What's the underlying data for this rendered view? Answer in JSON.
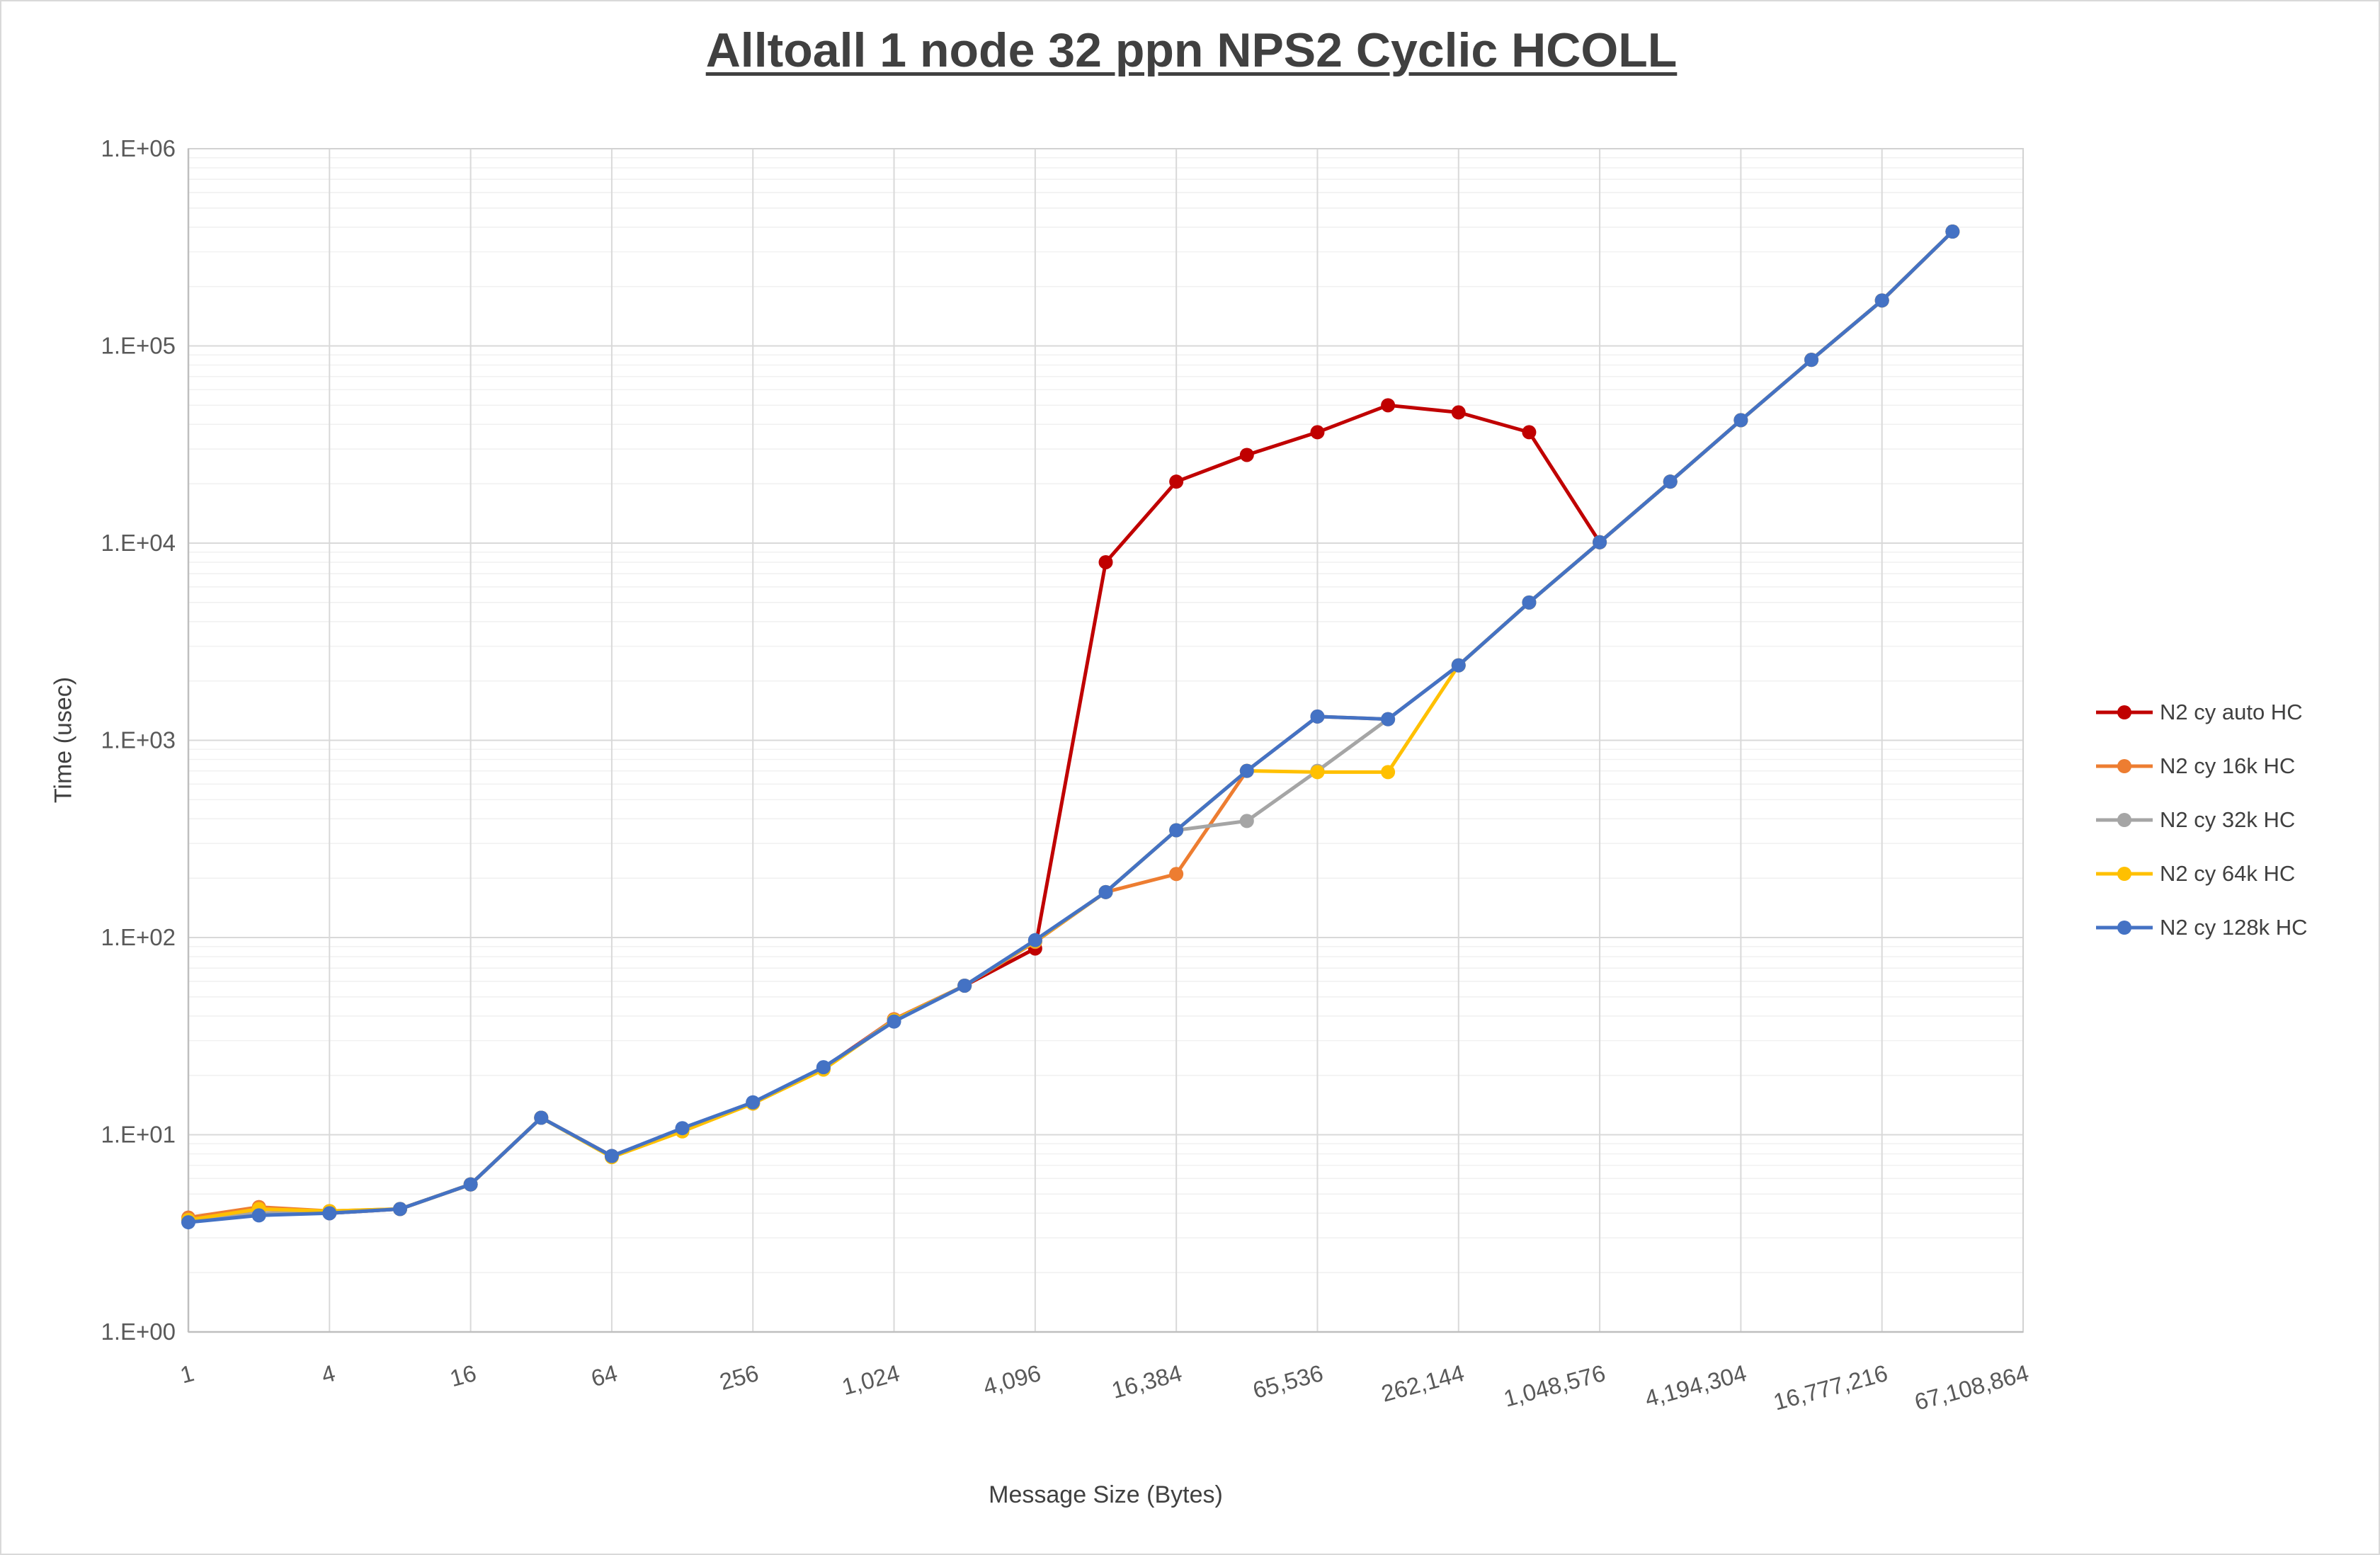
{
  "chart_data": {
    "type": "line",
    "title": "Alltoall 1 node 32 ppn NPS2 Cyclic HCOLL",
    "xlabel": "Message Size (Bytes)",
    "ylabel": "Time (usec)",
    "x_scale": "log2",
    "y_scale": "log10",
    "xlim": [
      1,
      67108864
    ],
    "ylim": [
      1,
      1000000
    ],
    "grid": true,
    "legend_position": "right",
    "x_ticks": {
      "values": [
        1,
        4,
        16,
        64,
        256,
        1024,
        4096,
        16384,
        65536,
        262144,
        1048576,
        4194304,
        16777216,
        67108864
      ],
      "labels": [
        "1",
        "4",
        "16",
        "64",
        "256",
        "1,024",
        "4,096",
        "16,384",
        "65,536",
        "262,144",
        "1,048,576",
        "4,194,304",
        "16,777,216",
        "67,108,864"
      ]
    },
    "y_ticks": {
      "values": [
        1,
        10,
        100,
        1000,
        10000,
        100000,
        1000000
      ],
      "labels": [
        "1.E+00",
        "1.E+01",
        "1.E+02",
        "1.E+03",
        "1.E+04",
        "1.E+05",
        "1.E+06"
      ]
    },
    "x": [
      1,
      2,
      4,
      8,
      16,
      32,
      64,
      128,
      256,
      512,
      1024,
      2048,
      4096,
      8192,
      16384,
      32768,
      65536,
      131072,
      262144,
      524288,
      1048576,
      2097152,
      4194304,
      8388608,
      16777216,
      33554432
    ],
    "series": [
      {
        "name": "N2 cy auto HC",
        "color": "#C00000",
        "values": [
          3.7,
          4.0,
          4.0,
          4.2,
          5.6,
          12.2,
          7.8,
          10.7,
          14.5,
          21.8,
          38.5,
          57,
          88,
          8000,
          20500,
          28000,
          36500,
          50000,
          46000,
          36500,
          10100,
          20500,
          42000,
          85000,
          170000,
          380000
        ]
      },
      {
        "name": "N2 cy 16k HC",
        "color": "#ED7D31",
        "values": [
          3.8,
          4.3,
          4.1,
          4.2,
          5.6,
          12.2,
          7.8,
          10.5,
          14.4,
          21.6,
          38.5,
          57,
          95,
          170,
          210,
          700,
          1320,
          1280,
          2400,
          5000,
          10100,
          20500,
          42000,
          85000,
          170000,
          380000
        ]
      },
      {
        "name": "N2 cy 32k HC",
        "color": "#A5A5A5",
        "values": [
          3.7,
          4.0,
          4.0,
          4.2,
          5.6,
          12.2,
          7.8,
          10.6,
          14.5,
          21.8,
          38,
          57,
          96,
          170,
          350,
          390,
          700,
          1280,
          2400,
          5000,
          10100,
          20500,
          42000,
          85000,
          170000,
          380000
        ]
      },
      {
        "name": "N2 cy 64k HC",
        "color": "#FFC000",
        "values": [
          3.7,
          4.2,
          4.1,
          4.2,
          5.6,
          12.2,
          7.7,
          10.4,
          14.4,
          21.4,
          38,
          57,
          96,
          170,
          350,
          700,
          690,
          690,
          2400,
          5000,
          10100,
          20500,
          42000,
          85000,
          170000,
          380000
        ]
      },
      {
        "name": "N2 cy 128k HC",
        "color": "#4472C4",
        "values": [
          3.6,
          3.9,
          4.0,
          4.2,
          5.6,
          12.2,
          7.8,
          10.8,
          14.6,
          22,
          37.5,
          57,
          97,
          170,
          350,
          700,
          1320,
          1280,
          2400,
          5000,
          10100,
          20500,
          42000,
          85000,
          170000,
          380000
        ]
      }
    ]
  }
}
